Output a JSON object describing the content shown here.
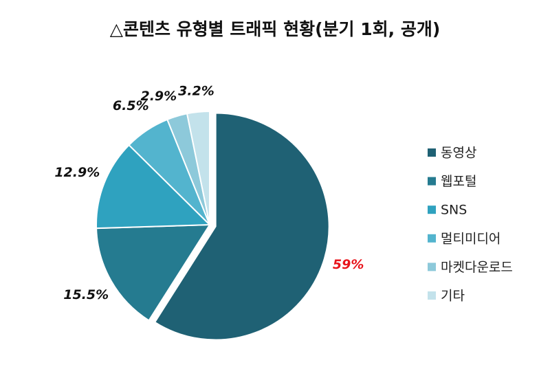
{
  "chart_data": {
    "type": "pie",
    "title": "△콘텐츠 유형별 트래픽 현황(분기 1회, 공개)",
    "categories": [
      "동영상",
      "웹포털",
      "SNS",
      "멀티미디어",
      "마켓다운로드",
      "기타"
    ],
    "values": [
      59,
      15.5,
      12.9,
      6.5,
      2.9,
      3.2
    ],
    "value_labels": [
      "59%",
      "15.5%",
      "12.9%",
      "6.5%",
      "2.9%",
      "3.2%"
    ],
    "colors": [
      "#1f6174",
      "#257b90",
      "#2fa2bf",
      "#53b4ce",
      "#8dc9da",
      "#c3e2eb"
    ],
    "label_colors": [
      "#e8141b",
      "#111111",
      "#111111",
      "#111111",
      "#111111",
      "#111111"
    ],
    "legend": "right"
  }
}
